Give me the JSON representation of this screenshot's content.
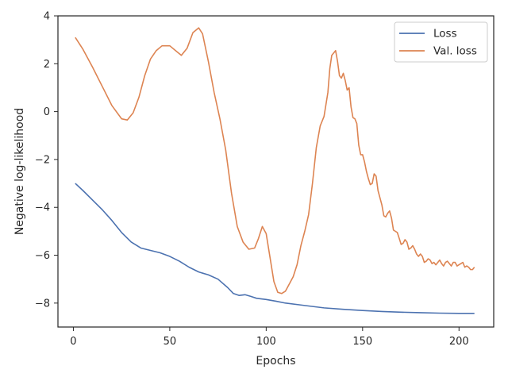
{
  "chart_data": {
    "type": "line",
    "title": "",
    "xlabel": "Epochs",
    "ylabel": "Negative log-likelihood",
    "xlim": [
      -8,
      218
    ],
    "ylim": [
      -9,
      4
    ],
    "xticks": [
      0,
      50,
      100,
      150,
      200
    ],
    "xtick_labels": [
      "0",
      "50",
      "100",
      "150",
      "200"
    ],
    "yticks": [
      4,
      2,
      0,
      -2,
      -4,
      -6,
      -8
    ],
    "ytick_labels": [
      "4",
      "2",
      "0",
      "−2",
      "−4",
      "−6",
      "−8"
    ],
    "grid": false,
    "legend_position": "top-right",
    "series": [
      {
        "name": "Loss",
        "color": "#4c72b0",
        "x": [
          1,
          5,
          10,
          15,
          20,
          25,
          30,
          35,
          40,
          45,
          50,
          55,
          60,
          65,
          70,
          75,
          80,
          83,
          86,
          89,
          92,
          95,
          100,
          105,
          110,
          120,
          130,
          140,
          150,
          160,
          170,
          180,
          190,
          200,
          208
        ],
        "y": [
          -3.0,
          -3.3,
          -3.7,
          -4.1,
          -4.55,
          -5.05,
          -5.45,
          -5.7,
          -5.8,
          -5.9,
          -6.05,
          -6.25,
          -6.5,
          -6.7,
          -6.82,
          -7.0,
          -7.35,
          -7.6,
          -7.68,
          -7.65,
          -7.72,
          -7.8,
          -7.85,
          -7.92,
          -8.0,
          -8.1,
          -8.2,
          -8.26,
          -8.31,
          -8.35,
          -8.38,
          -8.4,
          -8.42,
          -8.43,
          -8.43
        ]
      },
      {
        "name": "Val. loss",
        "color": "#dd8452",
        "x": [
          1,
          5,
          10,
          15,
          20,
          25,
          28,
          31,
          34,
          37,
          40,
          43,
          46,
          50,
          53,
          56,
          59,
          62,
          65,
          67,
          70,
          73,
          76,
          79,
          82,
          85,
          88,
          91,
          94,
          96,
          98,
          100,
          102,
          104,
          106,
          108,
          110,
          112,
          114,
          116,
          118,
          120,
          122,
          124,
          126,
          128,
          130,
          131,
          132,
          133,
          134,
          135,
          136,
          137,
          138,
          139,
          140,
          141,
          142,
          143,
          144,
          145,
          146,
          147,
          148,
          149,
          150,
          151,
          152,
          153,
          154,
          155,
          156,
          157,
          158,
          159,
          160,
          161,
          162,
          163,
          164,
          165,
          166,
          167,
          168,
          169,
          170,
          171,
          172,
          173,
          174,
          175,
          176,
          177,
          178,
          179,
          180,
          181,
          182,
          183,
          184,
          185,
          186,
          187,
          188,
          189,
          190,
          191,
          192,
          193,
          194,
          195,
          196,
          197,
          198,
          199,
          200,
          201,
          202,
          203,
          204,
          205,
          206,
          207,
          208
        ],
        "y": [
          3.1,
          2.6,
          1.85,
          1.05,
          0.25,
          -0.3,
          -0.35,
          -0.05,
          0.6,
          1.5,
          2.2,
          2.55,
          2.75,
          2.75,
          2.55,
          2.35,
          2.65,
          3.3,
          3.5,
          3.25,
          2.1,
          0.8,
          -0.3,
          -1.6,
          -3.4,
          -4.8,
          -5.45,
          -5.75,
          -5.7,
          -5.3,
          -4.8,
          -5.1,
          -6.1,
          -7.1,
          -7.55,
          -7.6,
          -7.5,
          -7.2,
          -6.9,
          -6.4,
          -5.6,
          -5.0,
          -4.3,
          -3.0,
          -1.5,
          -0.6,
          -0.2,
          0.3,
          0.8,
          1.8,
          2.35,
          2.45,
          2.55,
          2.1,
          1.5,
          1.4,
          1.6,
          1.3,
          0.9,
          1.0,
          0.2,
          -0.25,
          -0.3,
          -0.5,
          -1.4,
          -1.8,
          -1.8,
          -2.1,
          -2.5,
          -2.8,
          -3.05,
          -3.0,
          -2.6,
          -2.7,
          -3.3,
          -3.6,
          -3.9,
          -4.35,
          -4.4,
          -4.25,
          -4.15,
          -4.45,
          -4.95,
          -5.0,
          -5.05,
          -5.3,
          -5.55,
          -5.5,
          -5.35,
          -5.45,
          -5.75,
          -5.7,
          -5.6,
          -5.75,
          -5.95,
          -6.05,
          -5.95,
          -6.05,
          -6.3,
          -6.25,
          -6.15,
          -6.2,
          -6.35,
          -6.3,
          -6.4,
          -6.3,
          -6.2,
          -6.35,
          -6.45,
          -6.3,
          -6.25,
          -6.35,
          -6.45,
          -6.3,
          -6.3,
          -6.45,
          -6.4,
          -6.35,
          -6.3,
          -6.5,
          -6.45,
          -6.5,
          -6.6,
          -6.6,
          -6.5
        ]
      }
    ]
  }
}
